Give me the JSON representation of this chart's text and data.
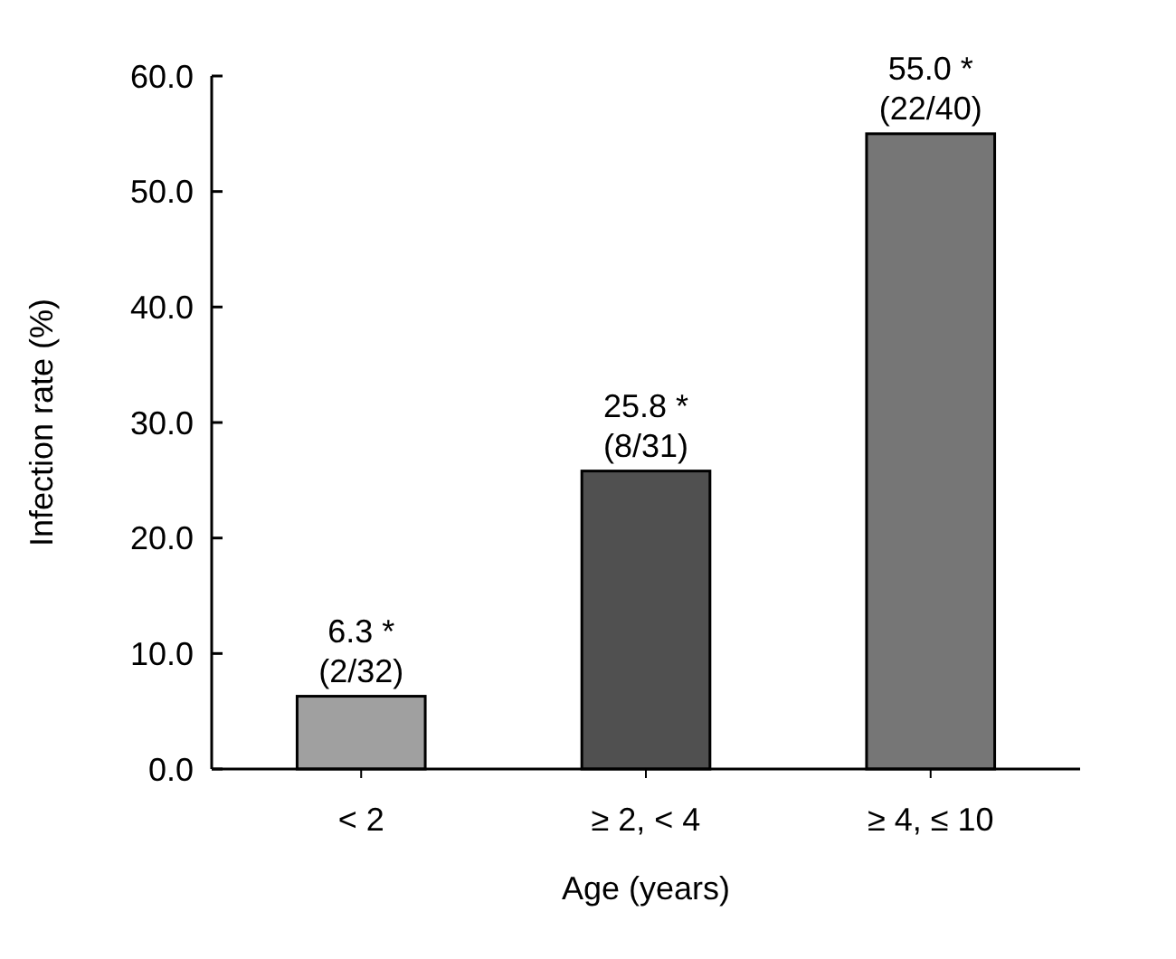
{
  "chart_data": {
    "type": "bar",
    "xlabel": "Age (years)",
    "ylabel": "Infection rate (%)",
    "categories": [
      "< 2",
      "≥ 2, < 4",
      "≥ 4, ≤ 10"
    ],
    "values": [
      6.3,
      25.8,
      55.0
    ],
    "colors": [
      "#a0a0a0",
      "#505050",
      "#767676"
    ],
    "value_labels": [
      "6.3 *\n(2/32)",
      "25.8 *\n(8/31)",
      "55.0 *\n(22/40)"
    ],
    "ylim": [
      0,
      60
    ],
    "yticks": [
      {
        "value": 0,
        "label": "0.0"
      },
      {
        "value": 10,
        "label": "10.0"
      },
      {
        "value": 20,
        "label": "20.0"
      },
      {
        "value": 30,
        "label": "30.0"
      },
      {
        "value": 40,
        "label": "40.0"
      },
      {
        "value": 50,
        "label": "50.0"
      },
      {
        "value": 60,
        "label": "60.0"
      }
    ],
    "grid": false
  }
}
